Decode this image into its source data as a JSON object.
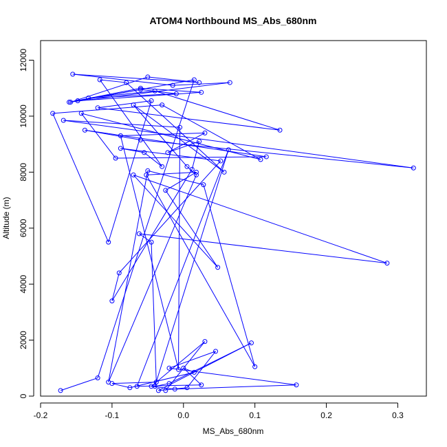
{
  "chart_data": {
    "type": "line",
    "title": "ATOM4 Northbound MS_Abs_680nm",
    "xlabel": "MS_Abs_680nm",
    "ylabel": "Altitude (m)",
    "xlim": [
      -0.2,
      0.34
    ],
    "ylim": [
      0,
      12700
    ],
    "x_ticks": [
      -0.2,
      -0.1,
      0.0,
      0.1,
      0.2,
      0.3
    ],
    "x_tick_labels": [
      "-0.2",
      "-0.1",
      "0.0",
      "0.1",
      "0.2",
      "0.3"
    ],
    "y_ticks": [
      0,
      2000,
      4000,
      6000,
      8000,
      10000,
      12000
    ],
    "y_tick_labels": [
      "0",
      "2000",
      "4000",
      "6000",
      "8000",
      "10000",
      "12000"
    ],
    "grid": false,
    "legend": "none",
    "color": "#0000ff",
    "marker": "open-circle",
    "series": [
      {
        "x": [
          -0.172,
          -0.12,
          0.015,
          -0.158,
          -0.05,
          0.022,
          -0.155,
          -0.015,
          0.065,
          -0.16,
          -0.06,
          0.025,
          -0.148,
          -0.06,
          -0.01,
          -0.133,
          -0.04,
          0.135,
          -0.12,
          -0.045,
          -0.105,
          -0.183,
          -0.03,
          0.108,
          -0.143,
          -0.095,
          0.116,
          -0.138,
          -0.06,
          0.322,
          -0.168,
          -0.005,
          -0.007,
          -0.088,
          0.03,
          -0.022,
          0.022,
          0.012,
          -0.1,
          -0.09,
          0.052,
          -0.088,
          -0.055,
          -0.03,
          -0.117,
          -0.08,
          0.057,
          -0.07,
          0.005,
          0.018,
          -0.105,
          -0.05,
          0.028,
          0.1,
          -0.052,
          0.018,
          -0.025,
          0.048,
          -0.07,
          0.285,
          -0.062,
          -0.045,
          -0.038,
          -0.1,
          -0.075,
          0.015,
          0.0,
          0.025,
          -0.065,
          0.063,
          -0.04,
          -0.02,
          0.095,
          -0.035,
          0.005,
          0.045,
          -0.02,
          0.158,
          -0.012,
          -0.045,
          0.03,
          -0.025
        ],
        "y": [
          200,
          650,
          11300,
          10500,
          11400,
          11200,
          11500,
          11100,
          11200,
          10500,
          11000,
          10850,
          10550,
          10950,
          10800,
          10650,
          10900,
          9500,
          10300,
          10550,
          5500,
          10100,
          10400,
          8450,
          10100,
          8500,
          8550,
          9500,
          9150,
          8150,
          9850,
          9600,
          950,
          9300,
          9400,
          8700,
          9100,
          8100,
          3400,
          4400,
          8400,
          8850,
          8700,
          8200,
          11300,
          11200,
          8000,
          10400,
          8200,
          7900,
          500,
          8050,
          7550,
          1050,
          7900,
          8000,
          7350,
          4600,
          7900,
          4750,
          5800,
          5500,
          500,
          450,
          300,
          850,
          1000,
          400,
          350,
          8800,
          350,
          450,
          1900,
          200,
          300,
          1600,
          1000,
          400,
          250,
          350,
          1950,
          200
        ]
      }
    ]
  }
}
